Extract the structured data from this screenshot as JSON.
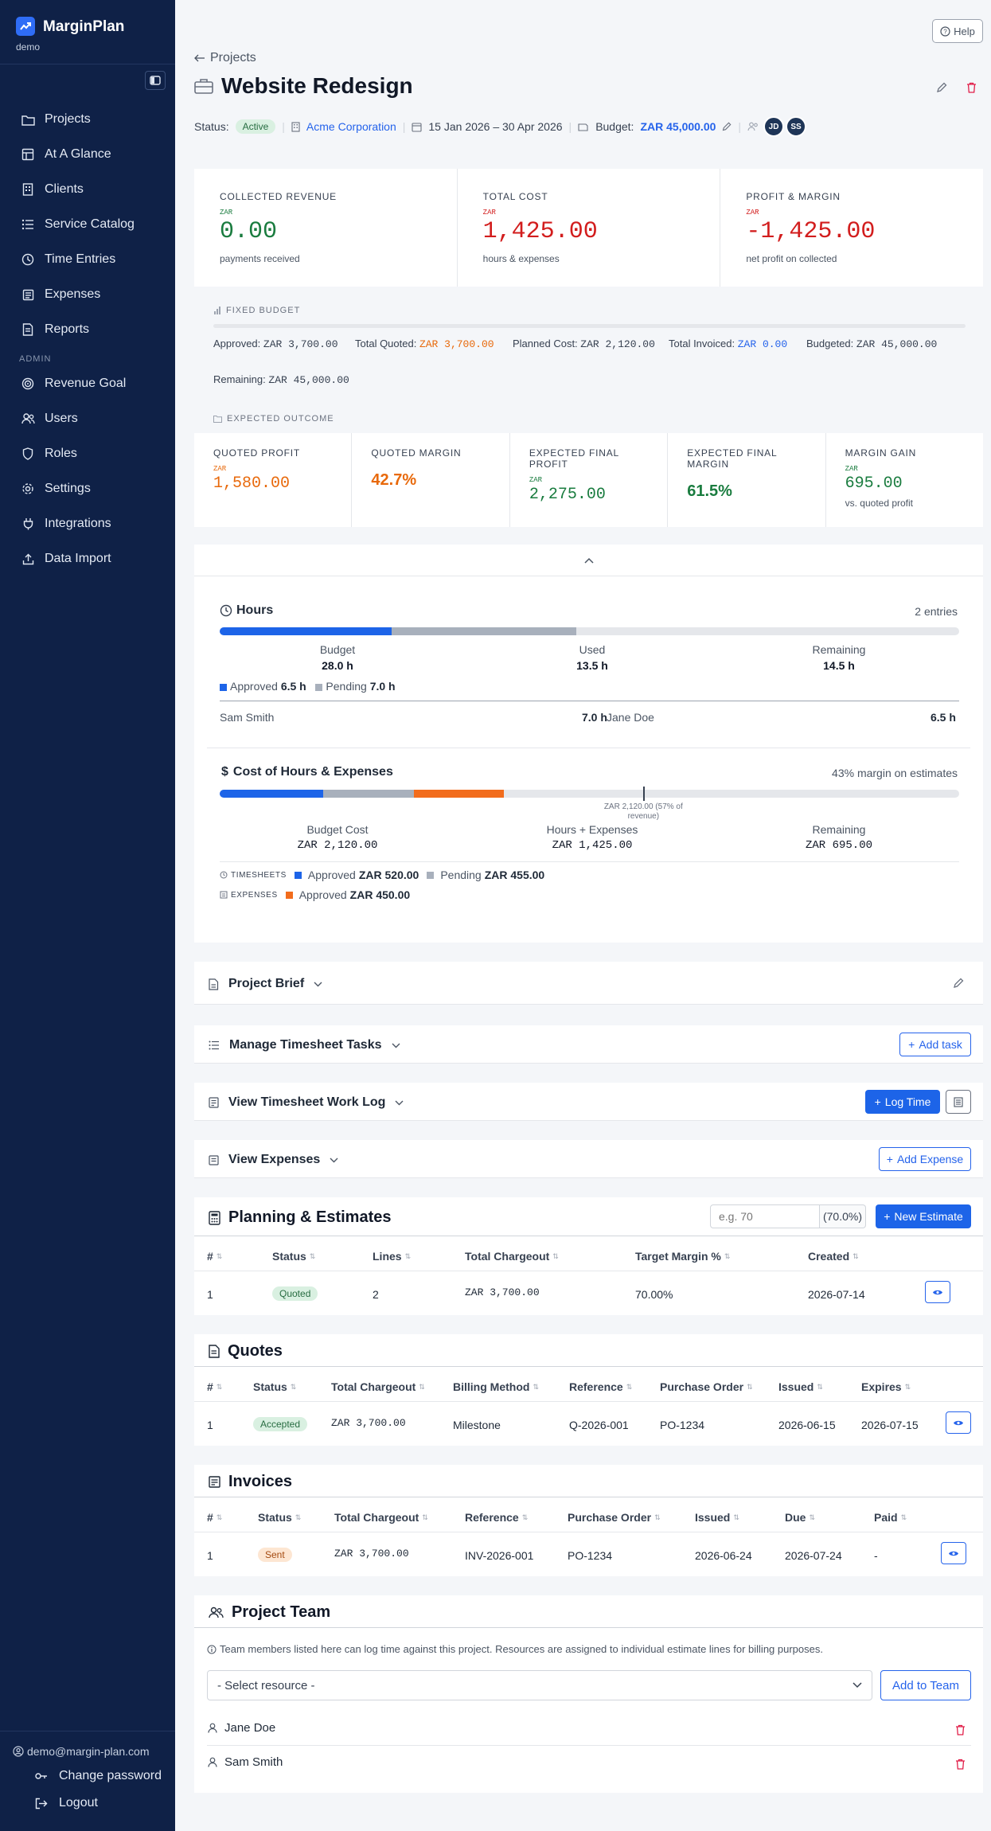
{
  "sidebar": {
    "brand": "MarginPlan",
    "org": "demo",
    "nav": [
      {
        "label": "Projects",
        "icon": "folder-icon"
      },
      {
        "label": "At A Glance",
        "icon": "dashboard-icon"
      },
      {
        "label": "Clients",
        "icon": "building-icon"
      },
      {
        "label": "Service Catalog",
        "icon": "list-icon"
      },
      {
        "label": "Time Entries",
        "icon": "clock-icon"
      },
      {
        "label": "Expenses",
        "icon": "receipt-icon"
      },
      {
        "label": "Reports",
        "icon": "document-icon"
      }
    ],
    "admin_label": "ADMIN",
    "admin_nav": [
      {
        "label": "Revenue Goal",
        "icon": "target-icon"
      },
      {
        "label": "Users",
        "icon": "users-icon"
      },
      {
        "label": "Roles",
        "icon": "shield-icon"
      },
      {
        "label": "Settings",
        "icon": "gear-icon"
      },
      {
        "label": "Integrations",
        "icon": "plug-icon"
      },
      {
        "label": "Data Import",
        "icon": "upload-icon"
      }
    ],
    "user_email": "demo@margin-plan.com",
    "change_password": "Change password",
    "logout": "Logout"
  },
  "header": {
    "help": "Help",
    "back": "Projects",
    "title": "Website Redesign",
    "status_label": "Status:",
    "status": "Active",
    "client": "Acme Corporation",
    "dates": "15 Jan 2026 – 30 Apr 2026",
    "budget_label": "Budget:",
    "budget_value": "ZAR 45,000.00",
    "team": [
      "JD",
      "SS"
    ]
  },
  "kpis": [
    {
      "label": "COLLECTED REVENUE",
      "currency": "ZAR",
      "value": "0.00",
      "sub": "payments received",
      "tone": "green"
    },
    {
      "label": "TOTAL COST",
      "currency": "ZAR",
      "value": "1,425.00",
      "sub": "hours & expenses",
      "tone": "red"
    },
    {
      "label": "PROFIT & MARGIN",
      "currency": "ZAR",
      "value": "-1,425.00",
      "sub": "net profit on collected",
      "tone": "red"
    }
  ],
  "fixed_budget": {
    "heading": "FIXED BUDGET",
    "approved_label": "Approved:",
    "approved": "ZAR 3,700.00",
    "quoted_label": "Total Quoted:",
    "quoted": "ZAR 3,700.00",
    "planned_label": "Planned Cost:",
    "planned": "ZAR 2,120.00",
    "invoiced_label": "Total Invoiced:",
    "invoiced": "ZAR 0.00",
    "budgeted_label": "Budgeted:",
    "budgeted": "ZAR 45,000.00",
    "remaining_label": "Remaining:",
    "remaining": "ZAR 45,000.00"
  },
  "expected": {
    "heading": "EXPECTED OUTCOME",
    "items": [
      {
        "label": "QUOTED PROFIT",
        "currency": "ZAR",
        "value": "1,580.00",
        "sub": "",
        "tone": "orange"
      },
      {
        "label": "QUOTED MARGIN",
        "currency": "",
        "value": "42.7%",
        "sub": "",
        "tone": "orange"
      },
      {
        "label": "EXPECTED FINAL PROFIT",
        "currency": "ZAR",
        "value": "2,275.00",
        "sub": "",
        "tone": "green"
      },
      {
        "label": "EXPECTED FINAL MARGIN",
        "currency": "",
        "value": "61.5%",
        "sub": "",
        "tone": "green"
      },
      {
        "label": "MARGIN GAIN",
        "currency": "ZAR",
        "value": "695.00",
        "sub": "vs. quoted profit",
        "tone": "green"
      }
    ]
  },
  "hours": {
    "title": "Hours",
    "entries": "2 entries",
    "approved_fraction": 0.232,
    "pending_fraction": 0.25,
    "budget_label": "Budget",
    "budget": "28.0 h",
    "used_label": "Used",
    "used": "13.5 h",
    "remaining_label": "Remaining",
    "remaining": "14.5 h",
    "legend_approved": "Approved",
    "approved": "6.5 h",
    "legend_pending": "Pending",
    "pending": "7.0 h",
    "people": [
      {
        "name": "Sam Smith",
        "hours": "7.0 h"
      },
      {
        "name": "Jane Doe",
        "hours": "6.5 h"
      }
    ]
  },
  "cost": {
    "title": "Cost of Hours & Expenses",
    "margin_note": "43% margin on estimates",
    "approved_fraction": 0.14,
    "pending_fraction": 0.123,
    "expenses_fraction": 0.121,
    "marker_fraction": 0.573,
    "marker_label": "ZAR 2,120.00 (57% of revenue)",
    "budget_label": "Budget Cost",
    "budget": "ZAR 2,120.00",
    "hours_label": "Hours + Expenses",
    "hours": "ZAR 1,425.00",
    "remaining_label": "Remaining",
    "remaining": "ZAR 695.00",
    "timesheets_label": "TIMESHEETS",
    "ts_approved_label": "Approved",
    "ts_approved": "ZAR 520.00",
    "ts_pending_label": "Pending",
    "ts_pending": "ZAR 455.00",
    "expenses_label": "EXPENSES",
    "ex_approved_label": "Approved",
    "ex_approved": "ZAR 450.00"
  },
  "sections": {
    "brief": "Project Brief",
    "tasks": "Manage Timesheet Tasks",
    "add_task": "Add task",
    "worklog": "View Timesheet Work Log",
    "log_time": "Log Time",
    "expenses": "View Expenses",
    "add_expense": "Add Expense"
  },
  "estimates": {
    "title": "Planning & Estimates",
    "margin_placeholder": "e.g. 70",
    "margin_suffix": "(70.0%)",
    "new_button": "New Estimate",
    "columns": [
      "#",
      "Status",
      "Lines",
      "Total Chargeout",
      "Target Margin %",
      "Created"
    ],
    "rows": [
      {
        "num": "1",
        "status": "Quoted",
        "lines": "2",
        "total": "ZAR 3,700.00",
        "margin": "70.00%",
        "created": "2026-07-14"
      }
    ]
  },
  "quotes": {
    "title": "Quotes",
    "columns": [
      "#",
      "Status",
      "Total Chargeout",
      "Billing Method",
      "Reference",
      "Purchase Order",
      "Issued",
      "Expires"
    ],
    "rows": [
      {
        "num": "1",
        "status": "Accepted",
        "total": "ZAR 3,700.00",
        "method": "Milestone",
        "ref": "Q-2026-001",
        "po": "PO-1234",
        "issued": "2026-06-15",
        "expires": "2026-07-15"
      }
    ]
  },
  "invoices": {
    "title": "Invoices",
    "columns": [
      "#",
      "Status",
      "Total Chargeout",
      "Reference",
      "Purchase Order",
      "Issued",
      "Due",
      "Paid"
    ],
    "rows": [
      {
        "num": "1",
        "status": "Sent",
        "total": "ZAR 3,700.00",
        "ref": "INV-2026-001",
        "po": "PO-1234",
        "issued": "2026-06-24",
        "due": "2026-07-24",
        "paid": "-"
      }
    ]
  },
  "team": {
    "title": "Project Team",
    "note": "Team members listed here can log time against this project. Resources are assigned to individual estimate lines for billing purposes.",
    "select_placeholder": "- Select resource -",
    "add_button": "Add to Team",
    "members": [
      "Jane Doe",
      "Sam Smith"
    ]
  }
}
